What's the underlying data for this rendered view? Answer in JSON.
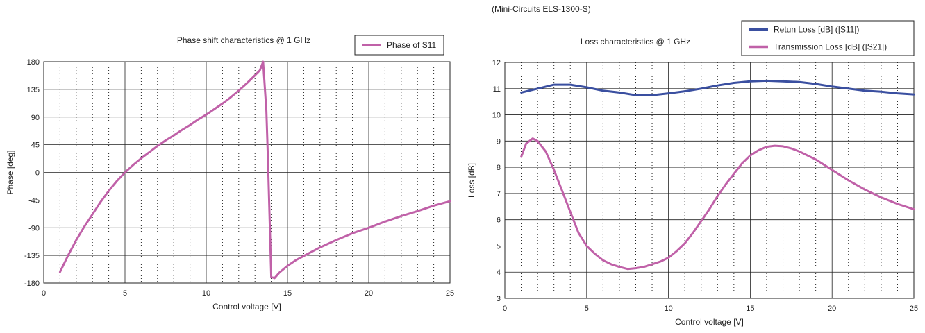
{
  "header_note": "(Mini-Circuits ELS-1300-S)",
  "chart_data": [
    {
      "type": "line",
      "title": "Phase shift characteristics @ 1 GHz",
      "xlabel": "Control voltage [V]",
      "ylabel": "Phase [deg]",
      "xlim": [
        0,
        25
      ],
      "ylim": [
        -180,
        180
      ],
      "xticks": [
        0,
        5,
        10,
        15,
        20,
        25
      ],
      "yticks": [
        -180,
        -135,
        -90,
        -45,
        0,
        45,
        90,
        135,
        180
      ],
      "grid": "major solid, minor dotted (1 V)",
      "legend": "top-right",
      "series": [
        {
          "name": "Phase of S11",
          "color": "#c061a8",
          "x": [
            1.0,
            1.5,
            2.0,
            2.5,
            3.0,
            3.5,
            4.0,
            4.5,
            5.0,
            5.5,
            6.0,
            6.5,
            7.0,
            7.5,
            8.0,
            8.5,
            9.0,
            9.5,
            10.0,
            10.5,
            11.0,
            11.5,
            12.0,
            12.5,
            13.0,
            13.3,
            13.5,
            13.7,
            13.8,
            14.0,
            14.2,
            14.5,
            15.0,
            15.5,
            16.0,
            17.0,
            18.0,
            19.0,
            20.0,
            21.0,
            22.0,
            23.0,
            24.0,
            25.0
          ],
          "y": [
            -162,
            -135,
            -110,
            -88,
            -68,
            -48,
            -30,
            -14,
            0,
            12,
            23,
            33,
            43,
            52,
            60,
            69,
            77,
            86,
            94,
            103,
            112,
            122,
            133,
            145,
            158,
            166,
            180,
            100,
            20,
            -170,
            -172,
            -163,
            -152,
            -143,
            -136,
            -122,
            -110,
            -99,
            -90,
            -80,
            -71,
            -63,
            -54,
            -47
          ]
        }
      ]
    },
    {
      "type": "line",
      "title": "Loss characteristics @ 1 GHz",
      "xlabel": "Control voltage [V]",
      "ylabel": "Loss [dB]",
      "xlim": [
        0,
        25
      ],
      "ylim": [
        3,
        12
      ],
      "xticks": [
        0,
        5,
        10,
        15,
        20,
        25
      ],
      "yticks": [
        3,
        4,
        5,
        6,
        7,
        8,
        9,
        10,
        11,
        12
      ],
      "grid": "major solid, minor dotted (1 V)",
      "legend": "top-right",
      "series": [
        {
          "name": "Retun Loss [dB] (|S11|)",
          "color": "#3a4fa0",
          "x": [
            1,
            2,
            3,
            4,
            5,
            6,
            7,
            8,
            9,
            10,
            11,
            12,
            13,
            14,
            15,
            16,
            17,
            18,
            19,
            20,
            21,
            22,
            23,
            24,
            25
          ],
          "y": [
            10.85,
            11.0,
            11.15,
            11.15,
            11.05,
            10.92,
            10.85,
            10.75,
            10.75,
            10.82,
            10.9,
            11.0,
            11.12,
            11.22,
            11.28,
            11.3,
            11.28,
            11.25,
            11.18,
            11.08,
            11.0,
            10.92,
            10.88,
            10.82,
            10.78
          ]
        },
        {
          "name": "Transmission Loss [dB] (|S21|)",
          "color": "#c061a8",
          "x": [
            1.0,
            1.3,
            1.7,
            2.0,
            2.5,
            3.0,
            3.5,
            4.0,
            4.5,
            5.0,
            5.5,
            6.0,
            6.5,
            7.0,
            7.5,
            8.0,
            8.5,
            9.0,
            9.5,
            10.0,
            10.5,
            11.0,
            11.5,
            12.0,
            12.5,
            13.0,
            13.5,
            14.0,
            14.5,
            15.0,
            15.5,
            16.0,
            16.5,
            17.0,
            17.5,
            18.0,
            18.5,
            19.0,
            20.0,
            21.0,
            22.0,
            23.0,
            24.0,
            25.0
          ],
          "y": [
            8.4,
            8.9,
            9.1,
            9.0,
            8.6,
            7.9,
            7.1,
            6.3,
            5.5,
            5.0,
            4.7,
            4.45,
            4.3,
            4.2,
            4.12,
            4.15,
            4.2,
            4.3,
            4.4,
            4.55,
            4.8,
            5.1,
            5.5,
            5.95,
            6.4,
            6.9,
            7.35,
            7.75,
            8.15,
            8.45,
            8.65,
            8.78,
            8.82,
            8.8,
            8.72,
            8.6,
            8.45,
            8.3,
            7.9,
            7.5,
            7.15,
            6.85,
            6.6,
            6.4
          ]
        }
      ]
    }
  ]
}
